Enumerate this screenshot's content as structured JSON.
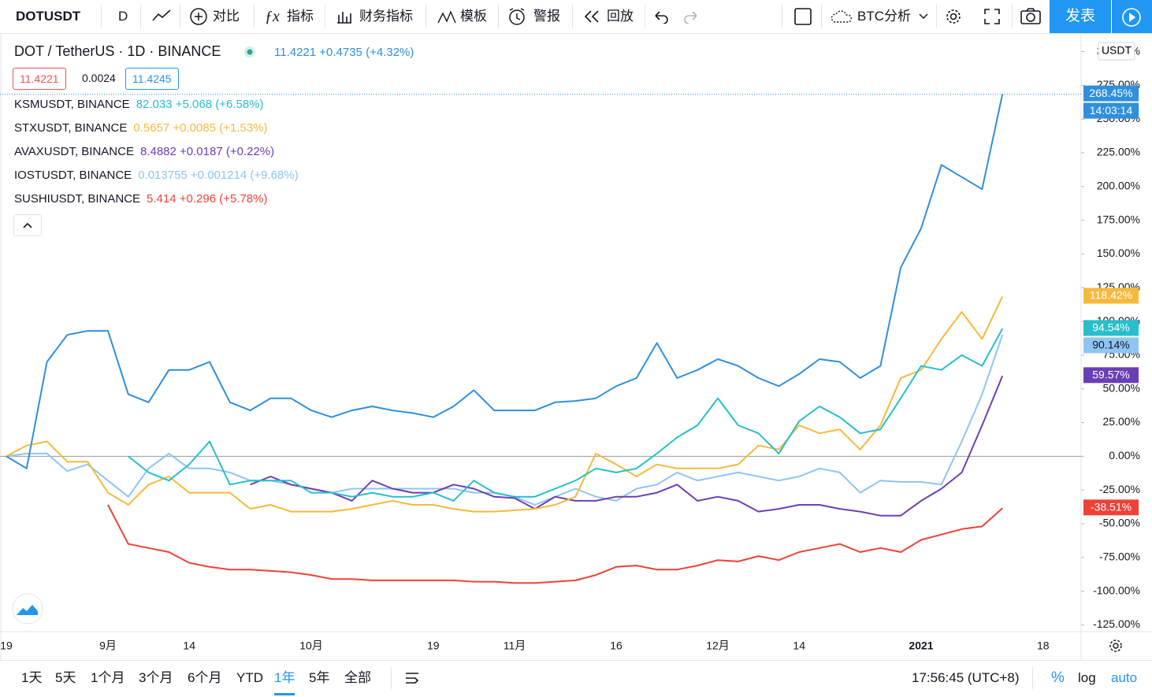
{
  "toolbar": {
    "symbol": "DOTUSDT",
    "interval": "D",
    "compare": "对比",
    "indicators": "指标",
    "financials": "财务指标",
    "templates": "模板",
    "alert": "警报",
    "replay": "回放",
    "layout_name": "BTC分析",
    "publish": "发表"
  },
  "symbol_panel": {
    "title": "DOT / TetherUS · 1D · BINANCE",
    "quote": "11.4221 +0.4735 (+4.32%)",
    "bid": "11.4221",
    "spread": "0.0024",
    "ask": "11.4245",
    "currency": "USDT"
  },
  "chart_data": {
    "type": "line",
    "categories": [
      "19",
      null,
      null,
      null,
      null,
      "9月",
      null,
      null,
      null,
      "14",
      null,
      null,
      null,
      null,
      null,
      "10月",
      null,
      null,
      null,
      null,
      null,
      "19",
      null,
      null,
      null,
      "11月",
      null,
      null,
      null,
      null,
      "16",
      null,
      null,
      null,
      null,
      "12月",
      null,
      null,
      null,
      "14",
      null,
      null,
      null,
      null,
      null,
      "2021",
      null,
      null,
      null,
      null,
      null,
      "18"
    ],
    "series": [
      {
        "name": "DOTUSDT",
        "color": "#2f8fdd",
        "last_label": "268.45%",
        "values": [
          0,
          -9,
          70,
          90,
          93,
          93,
          46,
          40,
          64,
          64,
          70,
          40,
          34,
          43,
          43,
          34,
          29,
          34,
          37,
          34,
          32,
          29,
          37,
          49,
          34,
          34,
          34,
          40,
          41,
          43,
          52,
          58,
          84,
          58,
          64,
          72,
          67,
          58,
          52,
          61,
          72,
          70,
          58,
          67,
          140,
          169,
          216,
          207,
          198,
          268.45,
          null,
          null
        ]
      },
      {
        "name": "KSMUSDT, BINANCE",
        "quote": "82.033 +5.068 (+6.58%)",
        "color": "#26bfcb",
        "last_label": "94.54%",
        "values": [
          null,
          null,
          null,
          null,
          null,
          null,
          0,
          -12,
          -18,
          -6,
          11,
          -21,
          -18,
          -18,
          -18,
          -27,
          -27,
          -30,
          -27,
          -30,
          -30,
          -27,
          -33,
          -18,
          -27,
          -30,
          -30,
          -24,
          -18,
          -9,
          -12,
          -9,
          2,
          14,
          23,
          43,
          23,
          17,
          2,
          26,
          37,
          29,
          17,
          20,
          43,
          67,
          64,
          75,
          67,
          94.54,
          null,
          null
        ]
      },
      {
        "name": "STXUSDT, BINANCE",
        "quote": "0.5657 +0.0085 (+1.53%)",
        "color": "#f6b93b",
        "last_label": "118.42%",
        "values": [
          0,
          8,
          11,
          -4,
          -4,
          -27,
          -36,
          -21,
          -15,
          -27,
          -27,
          -27,
          -39,
          -36,
          -41,
          -41,
          -41,
          -39,
          -36,
          -33,
          -36,
          -36,
          -39,
          -41,
          -41,
          -40,
          -39,
          -36,
          -30,
          2,
          -6,
          -15,
          -6,
          -9,
          -9,
          -9,
          -6,
          8,
          5,
          23,
          17,
          20,
          5,
          23,
          58,
          64,
          87,
          107,
          87,
          118.42,
          null,
          null
        ]
      },
      {
        "name": "AVAXUSDT, BINANCE",
        "quote": "8.4882 +0.0187 (+0.22%)",
        "color": "#6a3fb5",
        "last_label": "59.57%",
        "values": [
          null,
          null,
          null,
          null,
          null,
          null,
          null,
          null,
          null,
          null,
          null,
          null,
          -21,
          -15,
          -21,
          -24,
          -27,
          -33,
          -18,
          -24,
          -27,
          -27,
          -21,
          -24,
          -30,
          -31,
          -39,
          -30,
          -33,
          -33,
          -30,
          -30,
          -27,
          -21,
          -33,
          -30,
          -33,
          -41,
          -39,
          -36,
          -36,
          -39,
          -41,
          -44,
          -44,
          -33,
          -24,
          -12,
          23,
          59.57,
          null,
          null
        ]
      },
      {
        "name": "IOSTUSDT, BINANCE",
        "quote": "0.013755 +0.001214 (+9.68%)",
        "color": "#8ec5f2",
        "last_label": "90.14%",
        "values": [
          0,
          2,
          2,
          -11,
          -6,
          -18,
          -30,
          -9,
          2,
          -9,
          -9,
          -12,
          -18,
          -18,
          -21,
          -24,
          -27,
          -24,
          -24,
          -24,
          -24,
          -24,
          -24,
          -27,
          -27,
          -30,
          -36,
          -30,
          -24,
          -30,
          -33,
          -24,
          -21,
          -12,
          -18,
          -15,
          -12,
          -15,
          -18,
          -15,
          -9,
          -12,
          -27,
          -18,
          -19,
          -19,
          -21,
          11,
          46,
          90.14,
          null,
          null
        ]
      },
      {
        "name": "SUSHIUSDT, BINANCE",
        "quote": "5.414 +0.296 (+5.78%)",
        "color": "#ef4136",
        "last_label": "-38.51%",
        "values": [
          null,
          null,
          null,
          null,
          null,
          -36,
          -65,
          -68,
          -71,
          -79,
          -82,
          -84,
          -84,
          -85,
          -86,
          -88,
          -91,
          -91,
          -92,
          -92,
          -92,
          -92,
          -92,
          -93,
          -93,
          -94,
          -94,
          -93,
          -92,
          -88,
          -82,
          -81,
          -84,
          -84,
          -81,
          -77,
          -78,
          -74,
          -77,
          -71,
          -68,
          -65,
          -71,
          -68,
          -71,
          -62,
          -58,
          -54,
          -52,
          -38.51,
          null,
          null
        ]
      }
    ],
    "countdown": "14:03:14",
    "ylim": [
      -130,
      312
    ],
    "yticks": [
      {
        "value": -125,
        "label": "-125.00%"
      },
      {
        "value": -100,
        "label": "-100.00%"
      },
      {
        "value": -75,
        "label": "-75.00%"
      },
      {
        "value": -50,
        "label": "-50.00%"
      },
      {
        "value": -25,
        "label": "-25.00%"
      },
      {
        "value": 0,
        "label": "0.00%"
      },
      {
        "value": 25,
        "label": "25.00%"
      },
      {
        "value": 50,
        "label": "50.00%"
      },
      {
        "value": 75,
        "label": "75.00%"
      },
      {
        "value": 100,
        "label": "100.00%"
      },
      {
        "value": 125,
        "label": "125.00%"
      },
      {
        "value": 150,
        "label": "150.00%"
      },
      {
        "value": 175,
        "label": "175.00%"
      },
      {
        "value": 200,
        "label": "200.00%"
      },
      {
        "value": 225,
        "label": "225.00%"
      },
      {
        "value": 250,
        "label": "250.00%"
      },
      {
        "value": 275,
        "label": "275.00%"
      },
      {
        "value": 300,
        "label": "300.00%"
      }
    ],
    "zero_line": true,
    "grid": false
  },
  "bottom_bar": {
    "ranges": [
      "1天",
      "5天",
      "1个月",
      "3个月",
      "6个月",
      "YTD",
      "1年",
      "5年",
      "全部"
    ],
    "clock": "17:56:45 (UTC+8)",
    "percent": "%",
    "log": "log",
    "auto": "auto"
  }
}
